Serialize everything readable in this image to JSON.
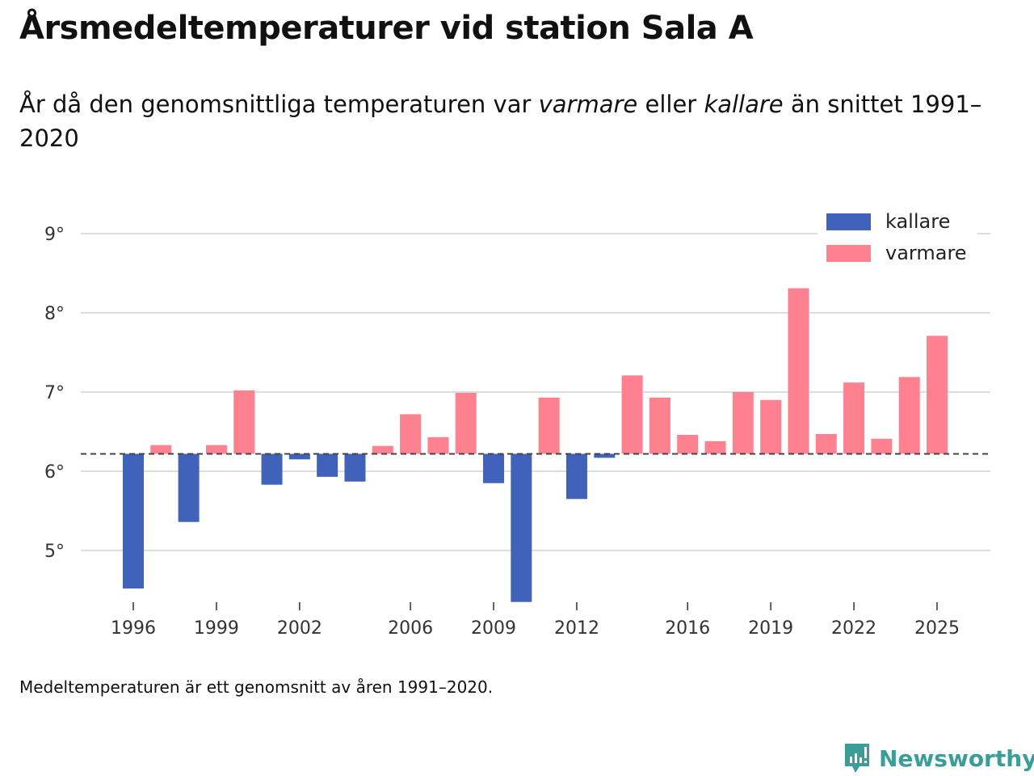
{
  "chart_data": {
    "type": "bar",
    "title": "Årsmedeltemperaturer vid station Sala A",
    "subtitle_parts": [
      "År då den genomsnittliga temperaturen var ",
      "varmare",
      " eller ",
      "kallare",
      " än snittet 1991–2020"
    ],
    "note": "Medeltemperaturen är ett genomsnitt av åren 1991–2020.",
    "baseline": 6.22,
    "ylim": [
      4.3,
      9.3
    ],
    "yticks": [
      5,
      6,
      7,
      8,
      9
    ],
    "ytick_labels": [
      "5°",
      "6°",
      "7°",
      "8°",
      "9°"
    ],
    "xtick_labels": [
      "1996",
      "1999",
      "2002",
      "2006",
      "2009",
      "2012",
      "2016",
      "2019",
      "2022",
      "2025"
    ],
    "legend": [
      {
        "name": "kallare",
        "color": "#4062bb"
      },
      {
        "name": "varmare",
        "color": "#ff808e"
      }
    ],
    "legend_position": "top-right",
    "grid": true,
    "x": [
      1996,
      1997,
      1998,
      1999,
      2000,
      2001,
      2002,
      2003,
      2004,
      2005,
      2006,
      2007,
      2008,
      2009,
      2010,
      2011,
      2012,
      2013,
      2014,
      2015,
      2016,
      2017,
      2018,
      2019,
      2020,
      2021,
      2022,
      2023,
      2024,
      2025
    ],
    "values": [
      4.52,
      6.33,
      5.36,
      6.33,
      7.02,
      5.83,
      6.15,
      5.93,
      5.87,
      6.32,
      6.72,
      6.43,
      6.99,
      5.85,
      4.35,
      6.93,
      5.65,
      6.17,
      7.21,
      6.93,
      6.46,
      6.38,
      7.0,
      6.9,
      8.31,
      6.47,
      7.12,
      6.41,
      7.19,
      7.71
    ]
  },
  "brand": "Newsworthy"
}
